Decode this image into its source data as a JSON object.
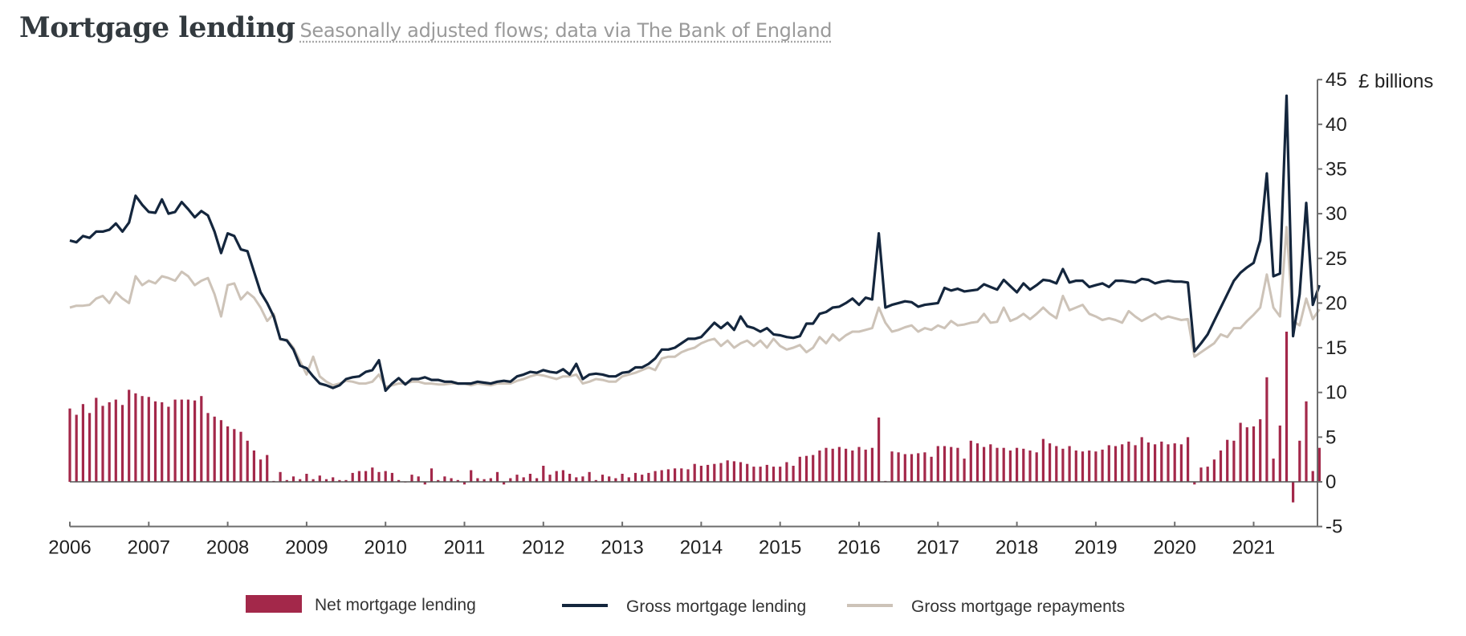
{
  "header": {
    "title": "Mortgage lending",
    "subtitle": "Seasonally adjusted flows; data via The Bank of England"
  },
  "colors": {
    "net": "#a3284a",
    "gross_lending": "#14263d",
    "gross_repayments": "#cdc3b8",
    "axis": "#6e6e6e"
  },
  "chart_data": {
    "type": "bar+line",
    "title": "Mortgage lending",
    "subtitle": "Seasonally adjusted flows; data via The Bank of England",
    "ylabel": "£ billions",
    "xlabel": "",
    "frequency": "monthly",
    "start": "2006-01",
    "end": "2021-11",
    "ylim": [
      -5,
      45
    ],
    "yticks": [
      "45",
      "40",
      "35",
      "30",
      "25",
      "20",
      "15",
      "10",
      "5",
      "0",
      "-5"
    ],
    "ytick_values": [
      45,
      40,
      35,
      30,
      25,
      20,
      15,
      10,
      5,
      0,
      -5
    ],
    "xticks": [
      "2006",
      "2007",
      "2008",
      "2009",
      "2010",
      "2011",
      "2012",
      "2013",
      "2014",
      "2015",
      "2016",
      "2017",
      "2018",
      "2019",
      "2020",
      "2021"
    ],
    "grid": false,
    "legend_position": "bottom",
    "legend": [
      "Net mortgage lending",
      "Gross mortgage lending",
      "Gross mortgage repayments"
    ],
    "series": [
      {
        "name": "Net mortgage lending",
        "kind": "bar",
        "values": [
          8.2,
          7.5,
          8.7,
          7.7,
          9.4,
          8.5,
          8.9,
          9.2,
          8.6,
          10.3,
          9.9,
          9.6,
          9.5,
          9.0,
          8.9,
          8.4,
          9.2,
          9.2,
          9.2,
          9.1,
          9.6,
          7.7,
          7.3,
          6.9,
          6.2,
          5.9,
          5.6,
          4.6,
          3.5,
          2.5,
          3.0,
          0.1,
          1.1,
          0.2,
          0.6,
          0.3,
          0.9,
          0.3,
          0.7,
          0.3,
          0.5,
          0.2,
          0.2,
          1.0,
          1.2,
          1.2,
          1.6,
          1.1,
          1.2,
          1.0,
          0.2,
          0.0,
          0.8,
          0.6,
          -0.3,
          1.5,
          0.2,
          0.6,
          0.4,
          0.2,
          -0.3,
          1.3,
          0.4,
          0.3,
          0.4,
          1.1,
          -0.3,
          0.4,
          0.8,
          0.5,
          0.9,
          0.4,
          1.8,
          0.8,
          1.2,
          1.3,
          0.9,
          0.5,
          0.6,
          1.1,
          0.2,
          0.8,
          0.6,
          0.4,
          0.9,
          0.5,
          1.0,
          0.8,
          1.0,
          1.2,
          1.3,
          1.4,
          1.5,
          1.5,
          1.4,
          2.0,
          1.8,
          1.9,
          2.0,
          2.1,
          2.4,
          2.3,
          2.2,
          2.0,
          1.7,
          1.7,
          1.9,
          1.7,
          1.7,
          2.2,
          1.8,
          2.8,
          2.9,
          3.0,
          3.5,
          3.8,
          3.7,
          3.9,
          3.7,
          3.5,
          3.9,
          3.6,
          3.8,
          7.2,
          0.1,
          3.4,
          3.3,
          3.1,
          3.1,
          3.2,
          3.3,
          2.8,
          4.0,
          4.0,
          3.9,
          3.8,
          2.6,
          4.6,
          4.3,
          3.9,
          4.2,
          3.8,
          3.8,
          3.5,
          3.8,
          3.7,
          3.5,
          3.3,
          4.8,
          4.3,
          4.0,
          3.7,
          4.0,
          3.5,
          3.4,
          3.5,
          3.4,
          3.6,
          4.1,
          4.0,
          4.2,
          4.5,
          4.1,
          5.0,
          4.4,
          4.2,
          4.5,
          4.2,
          4.3,
          4.2,
          5.0,
          -0.3,
          1.6,
          1.7,
          2.5,
          3.5,
          4.7,
          4.6,
          6.6,
          6.1,
          6.2,
          7.0,
          11.7,
          2.6,
          6.3,
          16.8,
          -2.3,
          4.6,
          9.0,
          1.2,
          3.8
        ]
      },
      {
        "name": "Gross mortgage lending",
        "kind": "line",
        "values": [
          27.0,
          26.8,
          27.5,
          27.3,
          28.0,
          28.0,
          28.2,
          28.9,
          28.0,
          29.0,
          32.0,
          31.0,
          30.2,
          30.1,
          31.6,
          30.0,
          30.2,
          31.3,
          30.5,
          29.6,
          30.3,
          29.8,
          28.0,
          25.6,
          27.8,
          27.5,
          26.0,
          25.8,
          23.5,
          21.2,
          20.0,
          18.5,
          16.0,
          15.8,
          14.8,
          13.0,
          12.7,
          11.8,
          11.0,
          10.8,
          10.5,
          10.8,
          11.5,
          11.7,
          11.8,
          12.3,
          12.5,
          13.6,
          10.2,
          11.0,
          11.6,
          10.9,
          11.5,
          11.5,
          11.7,
          11.4,
          11.4,
          11.2,
          11.2,
          11.0,
          11.0,
          11.0,
          11.2,
          11.1,
          11.0,
          11.2,
          11.3,
          11.2,
          11.8,
          12.0,
          12.3,
          12.2,
          12.5,
          12.3,
          12.2,
          12.6,
          12.0,
          13.2,
          11.5,
          12.0,
          12.1,
          12.0,
          11.8,
          11.8,
          12.2,
          12.3,
          12.8,
          12.8,
          13.2,
          13.8,
          14.8,
          14.8,
          15.0,
          15.5,
          16.0,
          16.0,
          16.2,
          17.0,
          17.8,
          17.2,
          17.8,
          17.0,
          18.5,
          17.4,
          17.2,
          16.8,
          17.2,
          16.5,
          16.4,
          16.2,
          16.1,
          16.3,
          17.7,
          17.7,
          18.8,
          19.0,
          19.5,
          19.6,
          20.0,
          20.5,
          19.8,
          20.6,
          20.4,
          27.8,
          19.5,
          19.8,
          20.0,
          20.2,
          20.1,
          19.6,
          19.8,
          19.9,
          20.0,
          21.7,
          21.4,
          21.6,
          21.3,
          21.4,
          21.5,
          22.1,
          21.8,
          21.5,
          22.6,
          21.9,
          21.2,
          22.2,
          21.5,
          22.0,
          22.6,
          22.5,
          22.2,
          23.8,
          22.3,
          22.5,
          22.5,
          21.8,
          22.0,
          22.2,
          21.8,
          22.5,
          22.5,
          22.4,
          22.3,
          22.7,
          22.6,
          22.2,
          22.4,
          22.5,
          22.4,
          22.4,
          22.3,
          14.6,
          15.5,
          16.5,
          18.0,
          19.5,
          21.0,
          22.5,
          23.4,
          24.0,
          24.5,
          27.0,
          34.5,
          23.0,
          23.3,
          43.2,
          16.3,
          21.0,
          31.2,
          19.8,
          22.0
        ]
      },
      {
        "name": "Gross mortgage repayments",
        "kind": "line",
        "values": [
          19.5,
          19.7,
          19.7,
          19.8,
          20.5,
          20.8,
          20.0,
          21.2,
          20.5,
          20.0,
          23.0,
          22.0,
          22.5,
          22.2,
          23.0,
          22.8,
          22.5,
          23.5,
          23.0,
          22.0,
          22.5,
          22.8,
          21.0,
          18.5,
          22.0,
          22.2,
          20.4,
          21.2,
          20.6,
          19.5,
          18.0,
          18.8,
          15.9,
          15.9,
          15.0,
          13.5,
          12.0,
          14.0,
          11.8,
          11.2,
          10.8,
          11.0,
          11.3,
          11.2,
          11.0,
          11.0,
          11.2,
          12.0,
          10.6,
          10.8,
          11.0,
          11.0,
          11.2,
          11.2,
          11.0,
          11.0,
          10.9,
          10.9,
          11.0,
          11.0,
          11.0,
          10.8,
          11.0,
          10.9,
          10.8,
          11.0,
          11.0,
          11.0,
          11.3,
          11.5,
          11.8,
          12.0,
          11.9,
          11.7,
          11.5,
          11.8,
          11.8,
          12.0,
          11.0,
          11.2,
          11.5,
          11.4,
          11.2,
          11.2,
          11.8,
          12.0,
          12.2,
          12.5,
          12.8,
          12.5,
          13.8,
          14.0,
          14.0,
          14.5,
          14.8,
          15.0,
          15.5,
          15.8,
          16.0,
          15.2,
          15.8,
          15.0,
          15.5,
          15.8,
          15.2,
          15.8,
          15.0,
          16.0,
          15.2,
          14.8,
          15.0,
          15.3,
          14.5,
          15.0,
          16.2,
          15.5,
          16.5,
          15.8,
          16.4,
          16.8,
          16.8,
          17.0,
          17.2,
          19.5,
          17.8,
          16.8,
          17.0,
          17.3,
          17.5,
          16.8,
          17.2,
          17.0,
          17.5,
          17.2,
          18.0,
          17.5,
          17.6,
          17.8,
          17.9,
          18.8,
          17.8,
          17.9,
          19.5,
          18.0,
          18.3,
          18.8,
          18.2,
          18.8,
          19.5,
          18.8,
          18.3,
          20.8,
          19.2,
          19.5,
          19.8,
          18.8,
          18.5,
          18.1,
          18.3,
          18.1,
          17.8,
          19.1,
          18.5,
          18.0,
          18.4,
          18.8,
          18.2,
          18.5,
          18.3,
          18.1,
          18.2,
          14.0,
          14.5,
          15.0,
          15.5,
          16.5,
          16.2,
          17.2,
          17.2,
          18.0,
          18.7,
          19.5,
          23.2,
          19.5,
          18.5,
          28.5,
          18.0,
          17.5,
          20.5,
          18.2,
          19.3
        ]
      }
    ]
  }
}
